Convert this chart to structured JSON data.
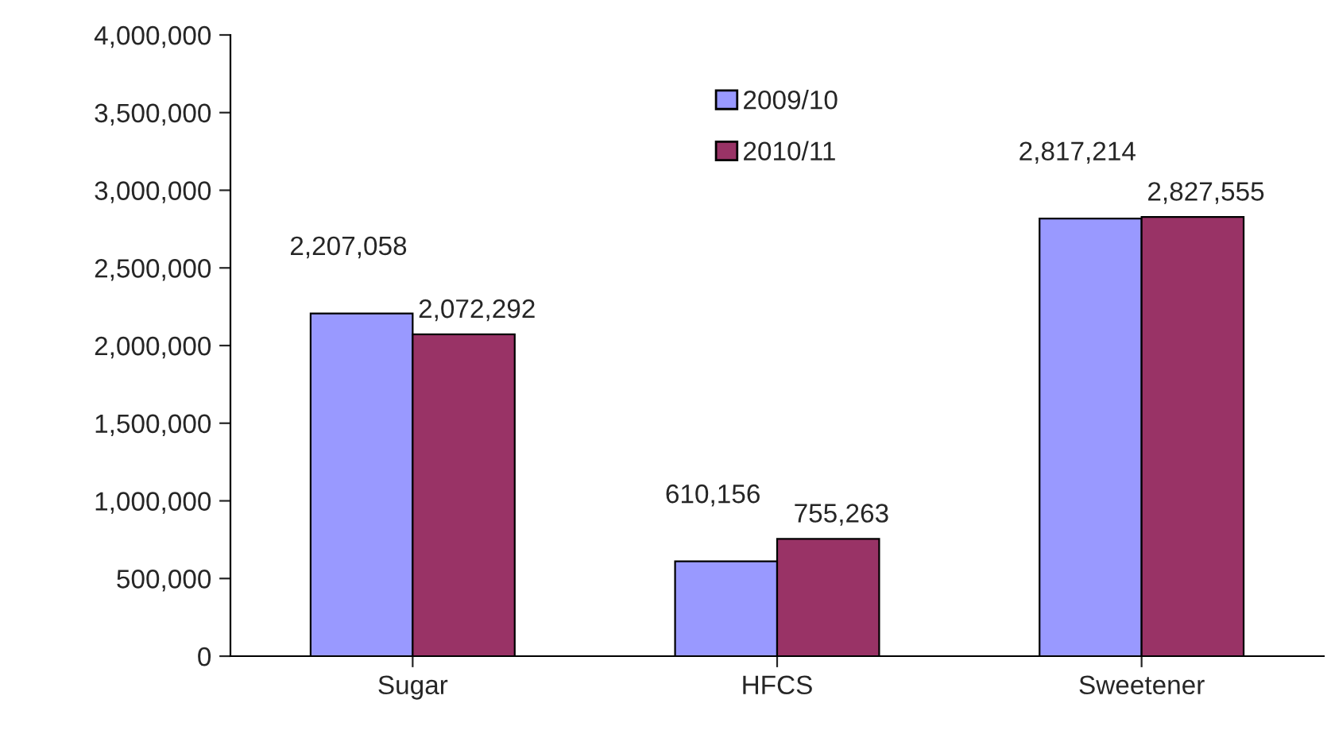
{
  "chart_data": {
    "type": "bar",
    "categories": [
      "Sugar",
      "HFCS",
      "Sweetener"
    ],
    "series": [
      {
        "name": "2009/10",
        "color": "#9999ff",
        "values": [
          2207058,
          610156,
          2817214
        ],
        "value_labels": [
          "2,207,058",
          "610,156",
          "2,817,214"
        ]
      },
      {
        "name": "2010/11",
        "color": "#993366",
        "values": [
          2072292,
          755263,
          2827555
        ],
        "value_labels": [
          "2,072,292",
          "755,263",
          "2,827,555"
        ]
      }
    ],
    "ylim": [
      0,
      4000000
    ],
    "yticks": [
      {
        "value": 0,
        "label": "0"
      },
      {
        "value": 500000,
        "label": "500,000"
      },
      {
        "value": 1000000,
        "label": "1,000,000"
      },
      {
        "value": 1500000,
        "label": "1,500,000"
      },
      {
        "value": 2000000,
        "label": "2,000,000"
      },
      {
        "value": 2500000,
        "label": "2,500,000"
      },
      {
        "value": 3000000,
        "label": "3,000,000"
      },
      {
        "value": 3500000,
        "label": "3,500,000"
      },
      {
        "value": 4000000,
        "label": "4,000,000"
      }
    ],
    "grid": false,
    "legend": "top"
  }
}
